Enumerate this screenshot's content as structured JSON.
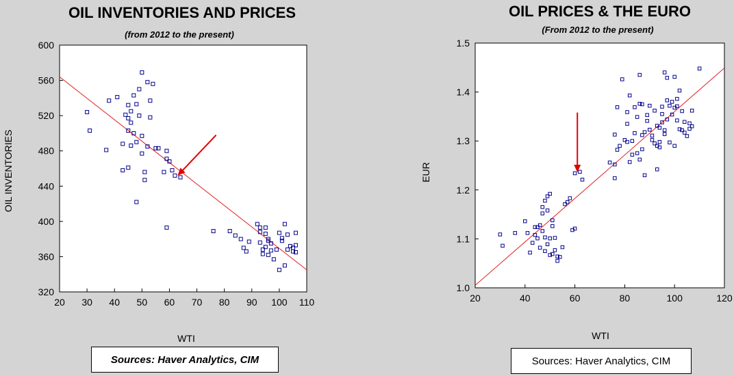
{
  "chart_data": [
    {
      "type": "scatter",
      "title": "OIL INVENTORIES AND PRICES",
      "subtitle": "(from 2012 to the present)",
      "xlabel": "WTI",
      "ylabel": "OIL INVENTORIES",
      "xlim": [
        20,
        110
      ],
      "ylim": [
        320,
        600
      ],
      "xticks": [
        20,
        30,
        40,
        50,
        60,
        70,
        80,
        90,
        100,
        110
      ],
      "yticks": [
        320,
        360,
        400,
        440,
        480,
        520,
        560,
        600
      ],
      "grid": false,
      "source": "Sources: Haver Analytics, CIM",
      "trendline": {
        "x": [
          20,
          110
        ],
        "y": [
          564,
          345
        ]
      },
      "arrow": {
        "from": [
          77,
          498
        ],
        "to": [
          63,
          452
        ]
      },
      "marker_color": "#00008b",
      "line_color": "#e02020",
      "arrow_color": "#e00000",
      "points": [
        [
          30,
          524
        ],
        [
          31,
          503
        ],
        [
          37,
          481
        ],
        [
          38,
          537
        ],
        [
          41,
          541
        ],
        [
          43,
          488
        ],
        [
          43,
          458
        ],
        [
          44,
          521
        ],
        [
          45,
          532
        ],
        [
          45,
          517
        ],
        [
          45,
          503
        ],
        [
          45,
          461
        ],
        [
          46,
          525
        ],
        [
          46,
          512
        ],
        [
          46,
          486
        ],
        [
          47,
          543
        ],
        [
          47,
          500
        ],
        [
          48,
          490
        ],
        [
          48,
          533
        ],
        [
          48,
          422
        ],
        [
          49,
          550
        ],
        [
          49,
          520
        ],
        [
          50,
          569
        ],
        [
          50,
          497
        ],
        [
          50,
          477
        ],
        [
          51,
          447
        ],
        [
          51,
          456
        ],
        [
          52,
          485
        ],
        [
          52,
          558
        ],
        [
          53,
          537
        ],
        [
          53,
          518
        ],
        [
          54,
          556
        ],
        [
          55,
          483
        ],
        [
          56,
          483
        ],
        [
          58,
          456
        ],
        [
          59,
          393
        ],
        [
          59,
          471
        ],
        [
          59,
          480
        ],
        [
          60,
          468
        ],
        [
          61,
          458
        ],
        [
          62,
          452
        ],
        [
          64,
          450
        ],
        [
          76,
          389
        ],
        [
          82,
          389
        ],
        [
          84,
          384
        ],
        [
          86,
          380
        ],
        [
          87,
          370
        ],
        [
          88,
          366
        ],
        [
          89,
          377
        ],
        [
          92,
          397
        ],
        [
          93,
          393
        ],
        [
          93,
          388
        ],
        [
          93,
          376
        ],
        [
          94,
          368
        ],
        [
          94,
          363
        ],
        [
          95,
          371
        ],
        [
          95,
          393
        ],
        [
          95,
          386
        ],
        [
          96,
          378
        ],
        [
          96,
          380
        ],
        [
          96,
          362
        ],
        [
          97,
          375
        ],
        [
          97,
          367
        ],
        [
          98,
          357
        ],
        [
          99,
          368
        ],
        [
          100,
          345
        ],
        [
          100,
          387
        ],
        [
          101,
          381
        ],
        [
          101,
          378
        ],
        [
          102,
          397
        ],
        [
          102,
          350
        ],
        [
          103,
          385
        ],
        [
          103,
          368
        ],
        [
          104,
          372
        ],
        [
          105,
          370
        ],
        [
          105,
          366
        ],
        [
          106,
          387
        ],
        [
          106,
          373
        ],
        [
          106,
          365
        ]
      ]
    },
    {
      "type": "scatter",
      "title": "OIL PRICES & THE EURO",
      "subtitle": "(From 2012 to the present)",
      "xlabel": "WTI",
      "ylabel": "EUR",
      "xlim": [
        20,
        120
      ],
      "ylim": [
        1.0,
        1.5
      ],
      "xticks": [
        20,
        40,
        60,
        80,
        100,
        120
      ],
      "yticks": [
        1.0,
        1.1,
        1.2,
        1.3,
        1.4,
        1.5
      ],
      "grid": false,
      "source": "Sources:  Haver Analytics, CIM",
      "trendline": {
        "x": [
          20,
          120
        ],
        "y": [
          1.005,
          1.449
        ]
      },
      "arrow": {
        "from": [
          61,
          1.358
        ],
        "to": [
          61,
          1.236
        ]
      },
      "marker_color": "#00008b",
      "line_color": "#e02020",
      "arrow_color": "#e00000",
      "points": [
        [
          30,
          1.109
        ],
        [
          31,
          1.086
        ],
        [
          36,
          1.112
        ],
        [
          40,
          1.136
        ],
        [
          41,
          1.112
        ],
        [
          42,
          1.072
        ],
        [
          43,
          1.092
        ],
        [
          44,
          1.124
        ],
        [
          44,
          1.108
        ],
        [
          45,
          1.124
        ],
        [
          45,
          1.101
        ],
        [
          46,
          1.082
        ],
        [
          46,
          1.128
        ],
        [
          47,
          1.152
        ],
        [
          47,
          1.165
        ],
        [
          47,
          1.116
        ],
        [
          48,
          1.178
        ],
        [
          48,
          1.075
        ],
        [
          48,
          1.103
        ],
        [
          49,
          1.187
        ],
        [
          49,
          1.158
        ],
        [
          49,
          1.089
        ],
        [
          50,
          1.192
        ],
        [
          50,
          1.067
        ],
        [
          50,
          1.101
        ],
        [
          51,
          1.126
        ],
        [
          51,
          1.138
        ],
        [
          51,
          1.069
        ],
        [
          52,
          1.102
        ],
        [
          52,
          1.077
        ],
        [
          53,
          1.055
        ],
        [
          53,
          1.064
        ],
        [
          54,
          1.063
        ],
        [
          55,
          1.083
        ],
        [
          56,
          1.171
        ],
        [
          57,
          1.175
        ],
        [
          58,
          1.183
        ],
        [
          59,
          1.118
        ],
        [
          60,
          1.121
        ],
        [
          60,
          1.234
        ],
        [
          62,
          1.237
        ],
        [
          63,
          1.221
        ],
        [
          74,
          1.256
        ],
        [
          76,
          1.313
        ],
        [
          76,
          1.224
        ],
        [
          76,
          1.252
        ],
        [
          77,
          1.282
        ],
        [
          77,
          1.369
        ],
        [
          78,
          1.29
        ],
        [
          79,
          1.426
        ],
        [
          80,
          1.302
        ],
        [
          81,
          1.298
        ],
        [
          81,
          1.335
        ],
        [
          81,
          1.359
        ],
        [
          82,
          1.393
        ],
        [
          82,
          1.257
        ],
        [
          83,
          1.3
        ],
        [
          83,
          1.272
        ],
        [
          84,
          1.369
        ],
        [
          84,
          1.316
        ],
        [
          85,
          1.275
        ],
        [
          85,
          1.349
        ],
        [
          86,
          1.435
        ],
        [
          86,
          1.376
        ],
        [
          86,
          1.262
        ],
        [
          87,
          1.375
        ],
        [
          87,
          1.312
        ],
        [
          87,
          1.283
        ],
        [
          88,
          1.23
        ],
        [
          88,
          1.318
        ],
        [
          89,
          1.341
        ],
        [
          89,
          1.353
        ],
        [
          90,
          1.372
        ],
        [
          90,
          1.323
        ],
        [
          91,
          1.302
        ],
        [
          91,
          1.311
        ],
        [
          92,
          1.295
        ],
        [
          92,
          1.362
        ],
        [
          93,
          1.29
        ],
        [
          93,
          1.242
        ],
        [
          93,
          1.331
        ],
        [
          94,
          1.327
        ],
        [
          94,
          1.298
        ],
        [
          94,
          1.287
        ],
        [
          95,
          1.338
        ],
        [
          95,
          1.355
        ],
        [
          95,
          1.37
        ],
        [
          96,
          1.44
        ],
        [
          96,
          1.322
        ],
        [
          96,
          1.314
        ],
        [
          97,
          1.429
        ],
        [
          97,
          1.383
        ],
        [
          97,
          1.344
        ],
        [
          98,
          1.372
        ],
        [
          98,
          1.297
        ],
        [
          99,
          1.354
        ],
        [
          99,
          1.38
        ],
        [
          100,
          1.431
        ],
        [
          100,
          1.29
        ],
        [
          100,
          1.368
        ],
        [
          101,
          1.386
        ],
        [
          101,
          1.342
        ],
        [
          101,
          1.371
        ],
        [
          102,
          1.403
        ],
        [
          102,
          1.324
        ],
        [
          103,
          1.322
        ],
        [
          103,
          1.361
        ],
        [
          104,
          1.317
        ],
        [
          104,
          1.339
        ],
        [
          105,
          1.31
        ],
        [
          106,
          1.325
        ],
        [
          106,
          1.336
        ],
        [
          107,
          1.33
        ],
        [
          107,
          1.362
        ],
        [
          110,
          1.448
        ]
      ]
    }
  ]
}
